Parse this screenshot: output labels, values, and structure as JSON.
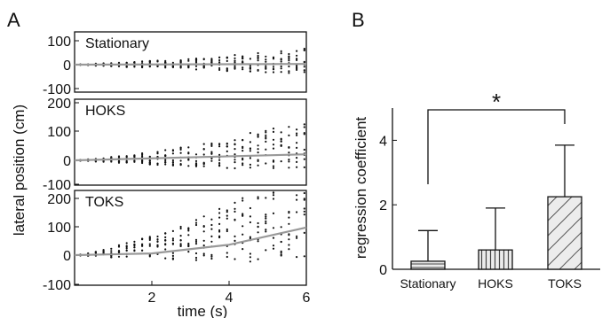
{
  "panel_a": {
    "label": "A",
    "ylabel": "lateral position (cm)",
    "xlabel": "time (s)",
    "x_ticks": [
      "2",
      "4",
      "6"
    ]
  },
  "panel_b": {
    "label": "B",
    "ylabel": "regression coefficient",
    "significance": "*"
  },
  "chart_data": [
    {
      "type": "scatter",
      "title": "Stationary",
      "x_range": [
        0,
        6
      ],
      "ylim": [
        -100,
        100
      ],
      "y_ticks": [
        "100",
        "0",
        "-100"
      ],
      "dot_spread_by_time": [
        {
          "x": 0.5,
          "min": -4,
          "max": 4
        },
        {
          "x": 1,
          "min": -8,
          "max": 8
        },
        {
          "x": 2,
          "min": -14,
          "max": 16
        },
        {
          "x": 3,
          "min": -20,
          "max": 24
        },
        {
          "x": 4,
          "min": -27,
          "max": 38
        },
        {
          "x": 5,
          "min": -33,
          "max": 55
        },
        {
          "x": 6,
          "min": -40,
          "max": 70
        }
      ],
      "mean_trend": [
        {
          "x": 0,
          "y": 0
        },
        {
          "x": 6,
          "y": 3
        }
      ]
    },
    {
      "type": "scatter",
      "title": "HOKS",
      "x_range": [
        0,
        6
      ],
      "ylim": [
        -100,
        200
      ],
      "y_ticks": [
        "200",
        "100",
        "0",
        "-100"
      ],
      "dot_spread_by_time": [
        {
          "x": 0.5,
          "min": -4,
          "max": 5
        },
        {
          "x": 1,
          "min": -8,
          "max": 12
        },
        {
          "x": 2,
          "min": -14,
          "max": 28
        },
        {
          "x": 3,
          "min": -20,
          "max": 48
        },
        {
          "x": 4,
          "min": -26,
          "max": 75
        },
        {
          "x": 5,
          "min": -32,
          "max": 105
        },
        {
          "x": 6,
          "min": -40,
          "max": 130
        }
      ],
      "mean_trend": [
        {
          "x": 0,
          "y": 0
        },
        {
          "x": 6,
          "y": 20
        }
      ]
    },
    {
      "type": "scatter",
      "title": "TOKS",
      "x_range": [
        0,
        6
      ],
      "ylim": [
        -120,
        230
      ],
      "y_ticks": [
        "200",
        "100",
        "0",
        "-100"
      ],
      "dot_spread_by_time": [
        {
          "x": 0.5,
          "min": -4,
          "max": 8
        },
        {
          "x": 1,
          "min": -8,
          "max": 25
        },
        {
          "x": 2,
          "min": -12,
          "max": 55
        },
        {
          "x": 3,
          "min": -15,
          "max": 95
        },
        {
          "x": 4,
          "min": -18,
          "max": 150
        },
        {
          "x": 5,
          "min": -22,
          "max": 195
        },
        {
          "x": 6,
          "min": -25,
          "max": 210
        }
      ],
      "mean_trend": [
        {
          "x": 0,
          "y": 0
        },
        {
          "x": 2,
          "y": 5
        },
        {
          "x": 4,
          "y": 30
        },
        {
          "x": 6,
          "y": 80
        }
      ]
    },
    {
      "type": "bar",
      "categories": [
        "Stationary",
        "HOKS",
        "TOKS"
      ],
      "values": [
        0.25,
        0.6,
        2.25
      ],
      "error_upper": [
        1.2,
        1.9,
        3.85
      ],
      "ylabel": "regression coefficient",
      "ylim": [
        0,
        5
      ],
      "y_ticks": [
        "0",
        "2",
        "4"
      ],
      "bar_fill_pattern": [
        "horizontal-stripes",
        "vertical-stripes",
        "diagonal-stripes"
      ],
      "significance": {
        "between": [
          "Stationary",
          "TOKS"
        ],
        "label": "*"
      }
    }
  ]
}
